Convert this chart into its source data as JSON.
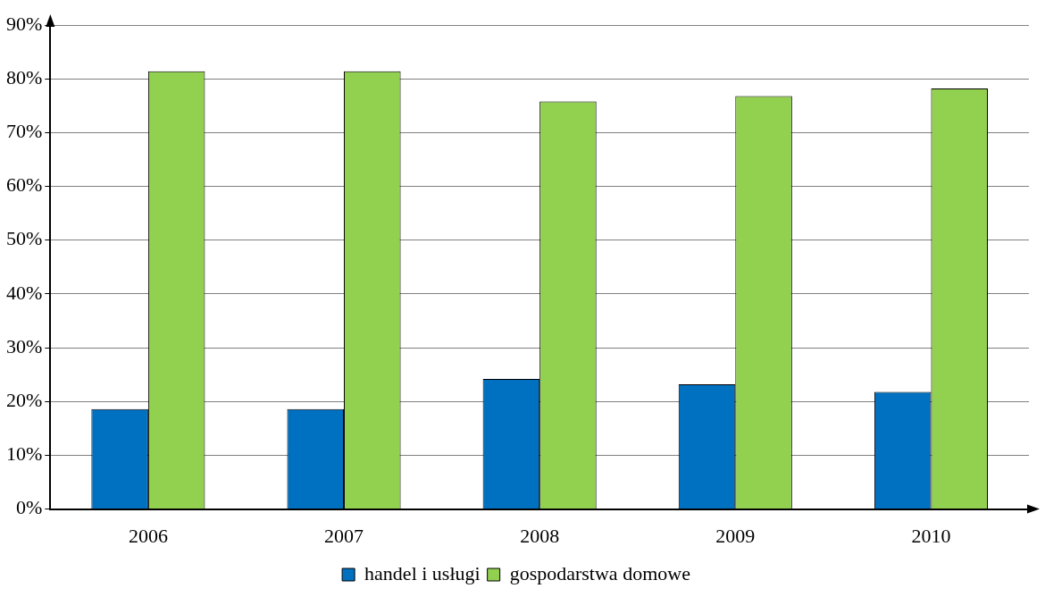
{
  "chart_data": {
    "type": "bar",
    "categories": [
      "2006",
      "2007",
      "2008",
      "2009",
      "2010"
    ],
    "series": [
      {
        "name": "handel i usługi",
        "color": "#0070c0",
        "values": [
          18.6,
          18.6,
          24.2,
          23.2,
          21.8
        ]
      },
      {
        "name": "gospodarstwa domowe",
        "color": "#92d050",
        "values": [
          81.4,
          81.4,
          75.8,
          76.8,
          78.2
        ]
      }
    ],
    "ylim": [
      0,
      90
    ],
    "yticks": [
      {
        "value": 0,
        "label": "0%"
      },
      {
        "value": 10,
        "label": "10%"
      },
      {
        "value": 20,
        "label": "20%"
      },
      {
        "value": 30,
        "label": "30%"
      },
      {
        "value": 40,
        "label": "40%"
      },
      {
        "value": 50,
        "label": "50%"
      },
      {
        "value": 60,
        "label": "60%"
      },
      {
        "value": 70,
        "label": "70%"
      },
      {
        "value": 80,
        "label": "80%"
      },
      {
        "value": 90,
        "label": "90%"
      }
    ],
    "grid": "y",
    "legend": "bottom"
  }
}
